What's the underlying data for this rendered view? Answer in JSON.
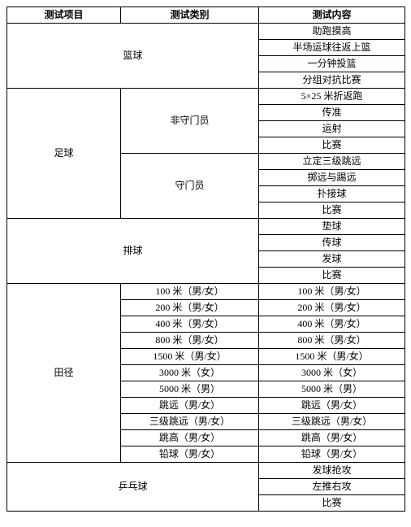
{
  "headers": {
    "project": "测试项目",
    "category": "测试类别",
    "content": "测试内容"
  },
  "basketball": {
    "name": "篮球",
    "items": [
      "助跑摸高",
      "半场运球往返上篮",
      "一分钟投篮",
      "分组对抗比赛"
    ]
  },
  "football": {
    "name": "足球",
    "nonGoalkeeper": {
      "label": "非守门员",
      "items": [
        "5×25 米折返跑",
        "传准",
        "运射",
        "比赛"
      ]
    },
    "goalkeeper": {
      "label": "守门员",
      "items": [
        "立定三级跳远",
        "掷远与踢远",
        "扑接球",
        "比赛"
      ]
    }
  },
  "volleyball": {
    "name": "排球",
    "items": [
      "垫球",
      "传球",
      "发球",
      "比赛"
    ]
  },
  "track": {
    "name": "田径",
    "events": [
      {
        "cat": "100 米（男/女）",
        "content": "100 米（男/女）"
      },
      {
        "cat": "200 米（男/女）",
        "content": "200 米（男/女）"
      },
      {
        "cat": "400 米（男/女）",
        "content": "400 米（男/女）"
      },
      {
        "cat": "800 米（男/女）",
        "content": "800 米（男/女）"
      },
      {
        "cat": "1500 米（男/女）",
        "content": "1500 米（男/女）"
      },
      {
        "cat": "3000 米（女）",
        "content": "3000 米（女）"
      },
      {
        "cat": "5000 米（男）",
        "content": "5000 米（男）"
      },
      {
        "cat": "跳远（男/女）",
        "content": "跳远（男/女）"
      },
      {
        "cat": "三级跳远（男/女）",
        "content": "三级跳远（男/女）"
      },
      {
        "cat": "跳高（男/女）",
        "content": "跳高（男/女）"
      },
      {
        "cat": "铅球（男/女）",
        "content": "铅球（男/女）"
      }
    ]
  },
  "pingpong": {
    "name": "乒乓球",
    "items": [
      "发球抢攻",
      "左推右攻",
      "比赛"
    ]
  }
}
